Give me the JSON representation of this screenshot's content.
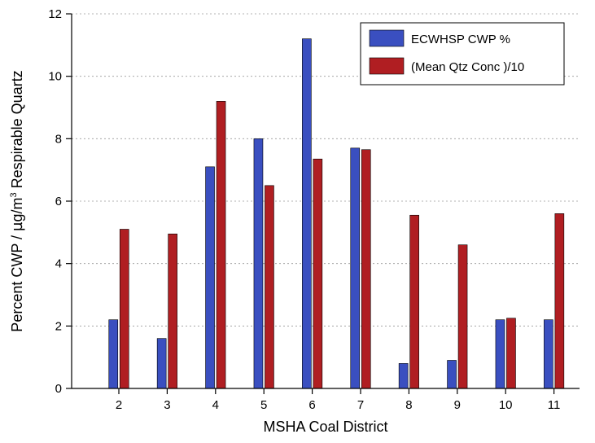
{
  "chart_data": {
    "type": "bar",
    "title": "",
    "xlabel": "MSHA Coal District",
    "ylabel_parts": {
      "before_unit": "Percent CWP / ",
      "unit_mu": "µ",
      "unit_rest": "g/m",
      "superscript": "3",
      "after_unit": " Respirable Quartz"
    },
    "categories": [
      "2",
      "3",
      "4",
      "5",
      "6",
      "7",
      "8",
      "9",
      "10",
      "11"
    ],
    "ylim": [
      0,
      12
    ],
    "yticks": [
      "0",
      "2",
      "4",
      "6",
      "8",
      "10",
      "12"
    ],
    "grid": true,
    "legend_position": "top-right",
    "series": [
      {
        "name": "ECWHSP CWP %",
        "color": "#3a4fc0",
        "values": [
          2.2,
          1.6,
          7.1,
          8.0,
          11.2,
          7.7,
          0.8,
          0.9,
          2.2,
          2.2
        ]
      },
      {
        "name": "(Mean Qtz Conc )/10",
        "color": "#b01e22",
        "values": [
          5.1,
          4.95,
          9.2,
          6.5,
          7.35,
          7.65,
          5.55,
          4.6,
          2.25,
          5.6
        ]
      }
    ]
  }
}
